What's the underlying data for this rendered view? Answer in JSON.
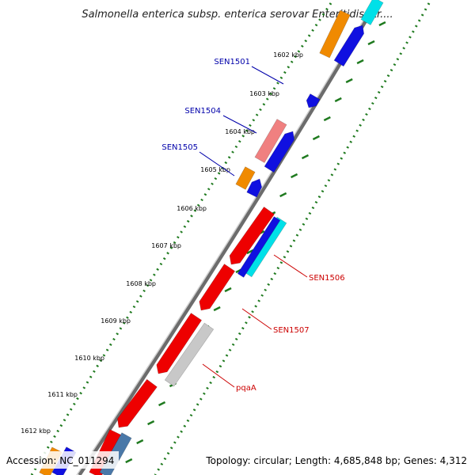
{
  "title": "Salmonella enterica subsp. enterica serovar Enteritidis str....",
  "footer": {
    "accession": "Accession: NC_011294",
    "summary": "Topology: circular; Length: 4,685,848 bp; Genes: 4,312"
  },
  "colors": {
    "backbone": "#8a8a8a",
    "tick": "#1f7a1f",
    "forward_label": "#0000aa",
    "reverse_label": "#cc0000",
    "blue": "#1010e0",
    "red": "#ee0000",
    "orange": "#f08a00",
    "pink": "#f08080",
    "cyan": "#00e0e8",
    "gray": "#c8c8c8",
    "steel": "#4a78a8"
  },
  "scale_labels": [
    "1602 kbp",
    "1603 kbp",
    "1604 kbp",
    "1605 kbp",
    "1606 kbp",
    "1607 kbp",
    "1608 kbp",
    "1609 kbp",
    "1610 kbp",
    "1611 kbp",
    "1612 kbp"
  ],
  "gene_labels": [
    {
      "name": "SEN1501",
      "strand": "forward"
    },
    {
      "name": "SEN1504",
      "strand": "forward"
    },
    {
      "name": "SEN1505",
      "strand": "forward"
    },
    {
      "name": "SEN1506",
      "strand": "reverse"
    },
    {
      "name": "SEN1507",
      "strand": "reverse"
    },
    {
      "name": "pqaA",
      "strand": "reverse"
    }
  ]
}
